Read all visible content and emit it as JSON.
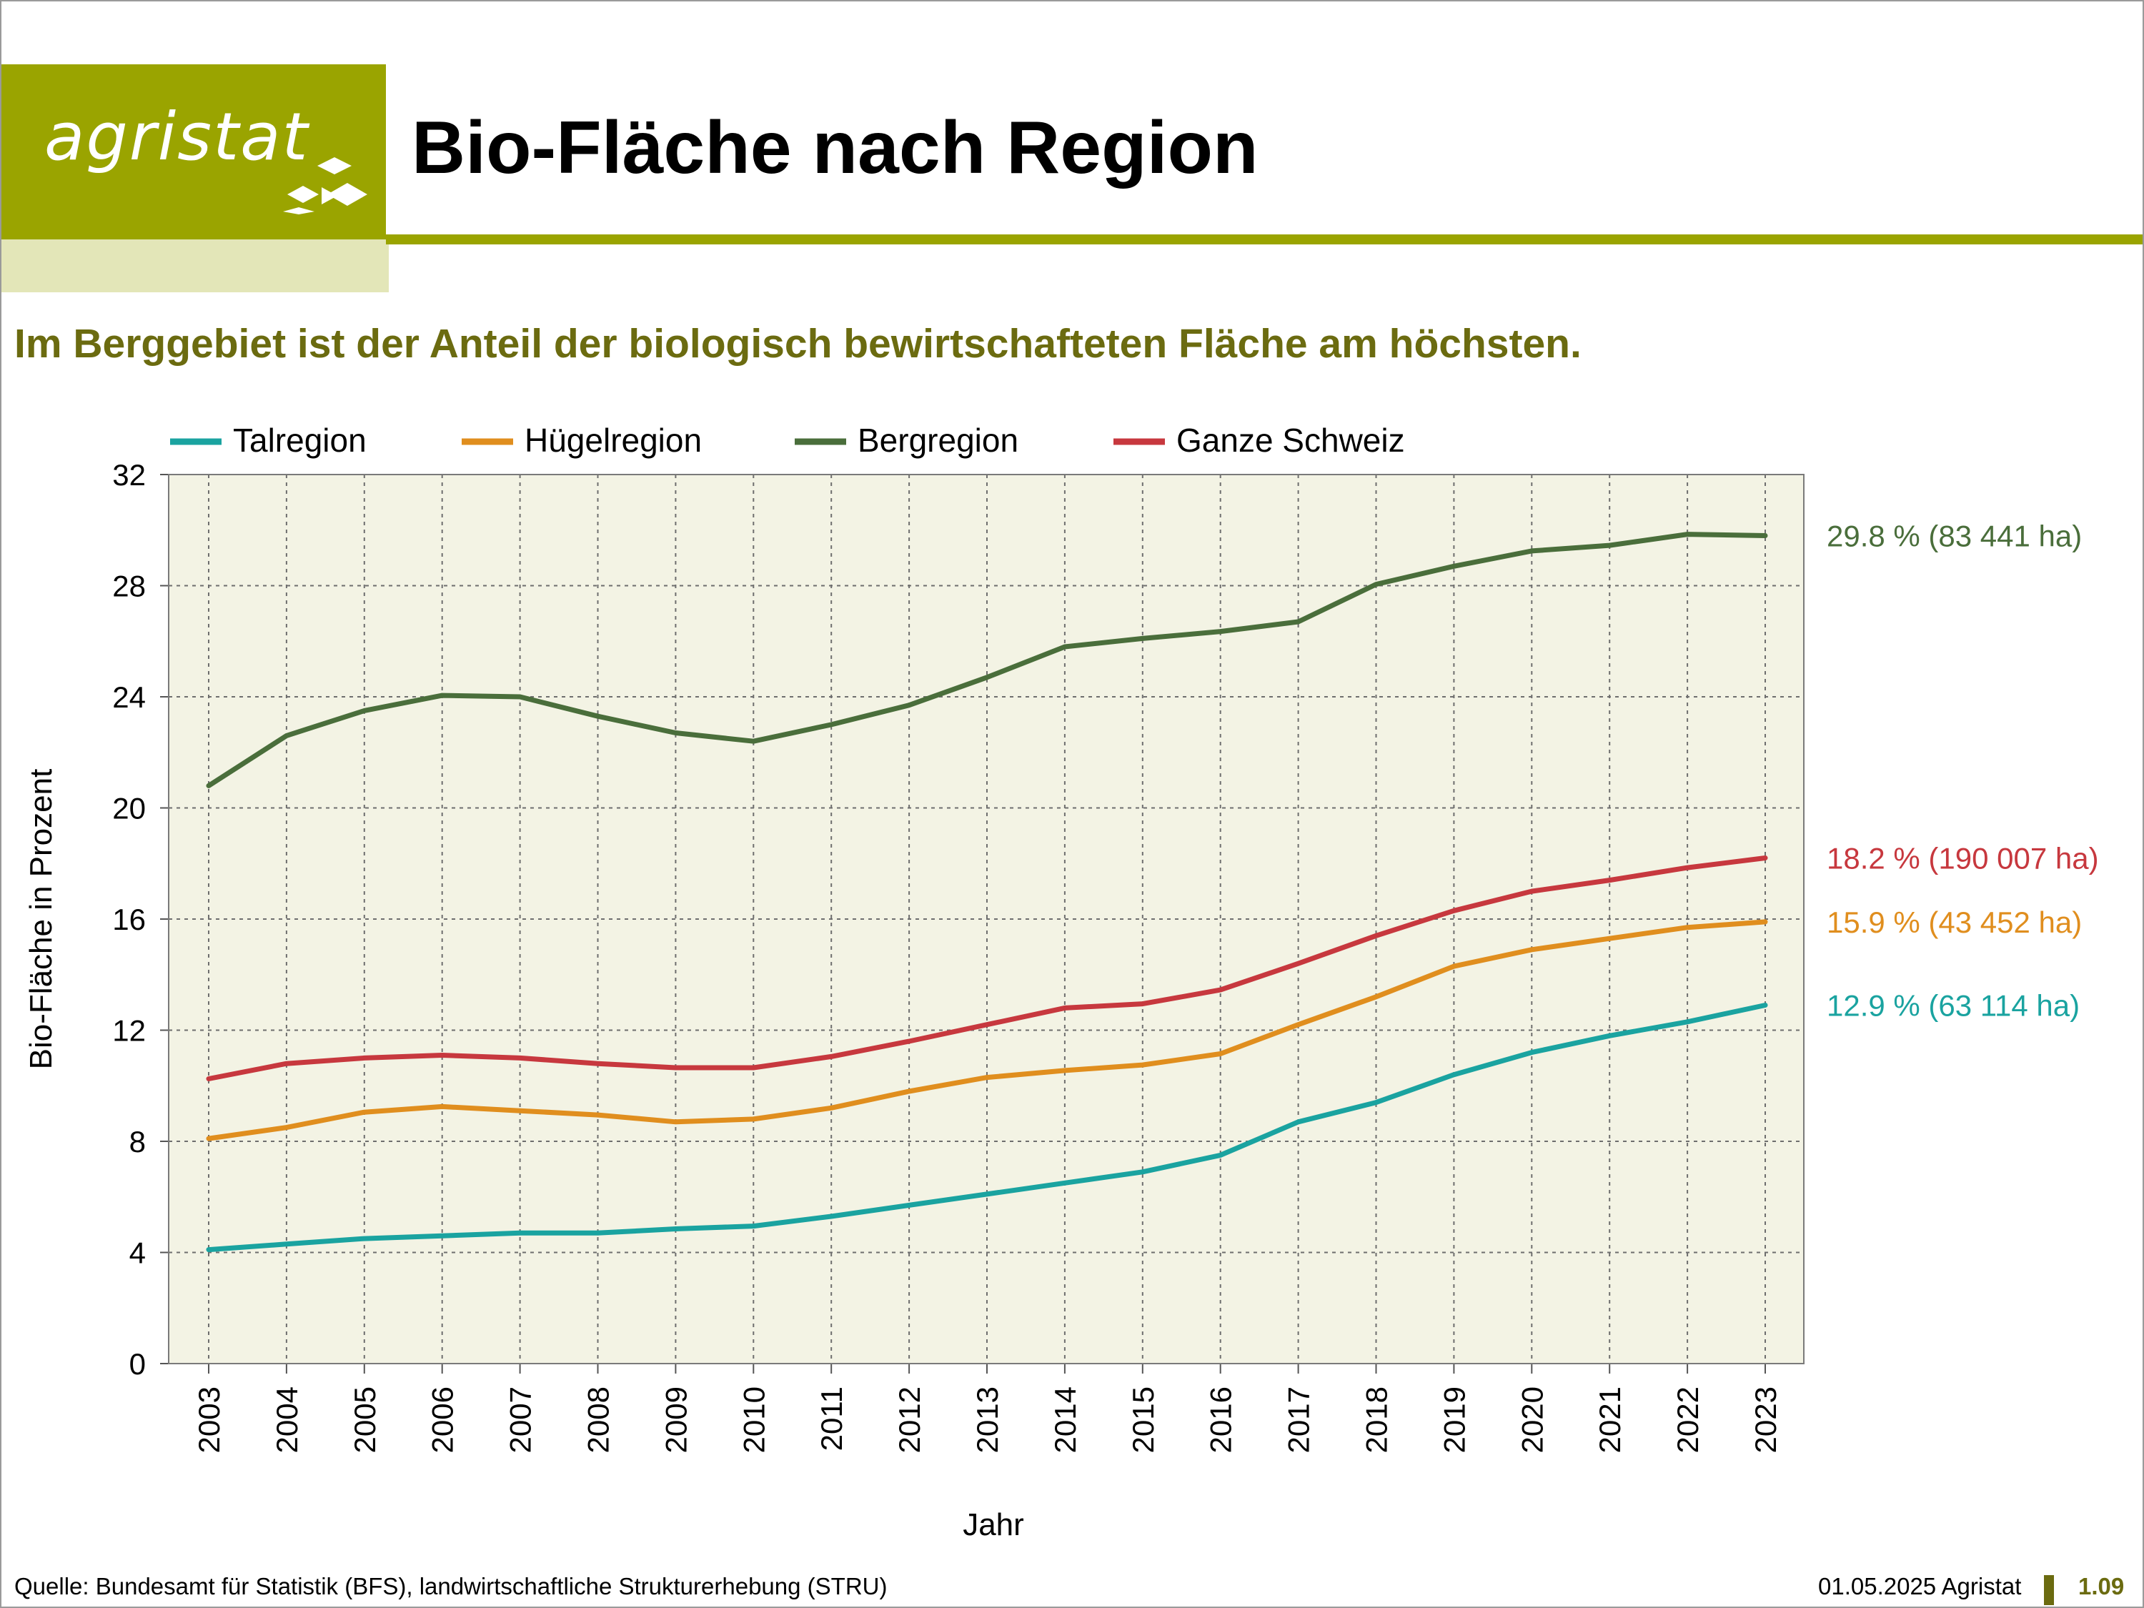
{
  "header": {
    "logo_text": "agristat",
    "title": "Bio-Fläche nach Region"
  },
  "subtitle": "Im Berggebiet ist der Anteil der biologisch bewirtschafteten Fläche am höchsten.",
  "footer": {
    "source": "Quelle: Bundesamt für Statistik (BFS), landwirtschaftliche Strukturerhebung (STRU)",
    "date": "01.05.2025 Agristat",
    "page": "1.09"
  },
  "colors": {
    "brand": "#9aa400",
    "brand_light": "#e3e6b8",
    "subtitle": "#6b6b10",
    "plot_bg": "#f3f3e4"
  },
  "chart_data": {
    "type": "line",
    "xlabel": "Jahr",
    "ylabel": "Bio-Fläche in Prozent",
    "ylim": [
      0,
      32
    ],
    "yticks": [
      0,
      4,
      8,
      12,
      16,
      20,
      24,
      28,
      32
    ],
    "grid": true,
    "legend_position": "top",
    "categories": [
      "2003",
      "2004",
      "2005",
      "2006",
      "2007",
      "2008",
      "2009",
      "2010",
      "2011",
      "2012",
      "2013",
      "2014",
      "2015",
      "2016",
      "2017",
      "2018",
      "2019",
      "2020",
      "2021",
      "2022",
      "2023"
    ],
    "series": [
      {
        "name": "Talregion",
        "color": "#1aa3a0",
        "values": [
          4.1,
          4.3,
          4.5,
          4.6,
          4.7,
          4.7,
          4.85,
          4.95,
          5.3,
          5.7,
          6.1,
          6.5,
          6.9,
          7.5,
          8.7,
          9.4,
          10.4,
          11.2,
          11.8,
          12.3,
          12.9
        ],
        "end_label": "12.9 % (63 114 ha)"
      },
      {
        "name": "Hügelregion",
        "color": "#e08e1e",
        "values": [
          8.1,
          8.5,
          9.05,
          9.25,
          9.1,
          8.95,
          8.7,
          8.8,
          9.2,
          9.8,
          10.3,
          10.55,
          10.75,
          11.15,
          12.2,
          13.2,
          14.3,
          14.9,
          15.3,
          15.7,
          15.9
        ],
        "end_label": "15.9 % (43 452 ha)"
      },
      {
        "name": "Bergregion",
        "color": "#4a6e3b",
        "values": [
          20.8,
          22.6,
          23.5,
          24.05,
          24.0,
          23.3,
          22.7,
          22.4,
          23.0,
          23.7,
          24.7,
          25.8,
          26.1,
          26.35,
          26.7,
          28.05,
          28.7,
          29.25,
          29.45,
          29.85,
          29.8
        ],
        "end_label": "29.8 % (83 441 ha)"
      },
      {
        "name": "Ganze Schweiz",
        "color": "#c7383e",
        "values": [
          10.25,
          10.8,
          11.0,
          11.1,
          11.0,
          10.8,
          10.65,
          10.65,
          11.05,
          11.6,
          12.2,
          12.8,
          12.95,
          13.45,
          14.4,
          15.4,
          16.3,
          17.0,
          17.4,
          17.85,
          18.2
        ],
        "end_label": "18.2 % (190 007 ha)"
      }
    ]
  }
}
